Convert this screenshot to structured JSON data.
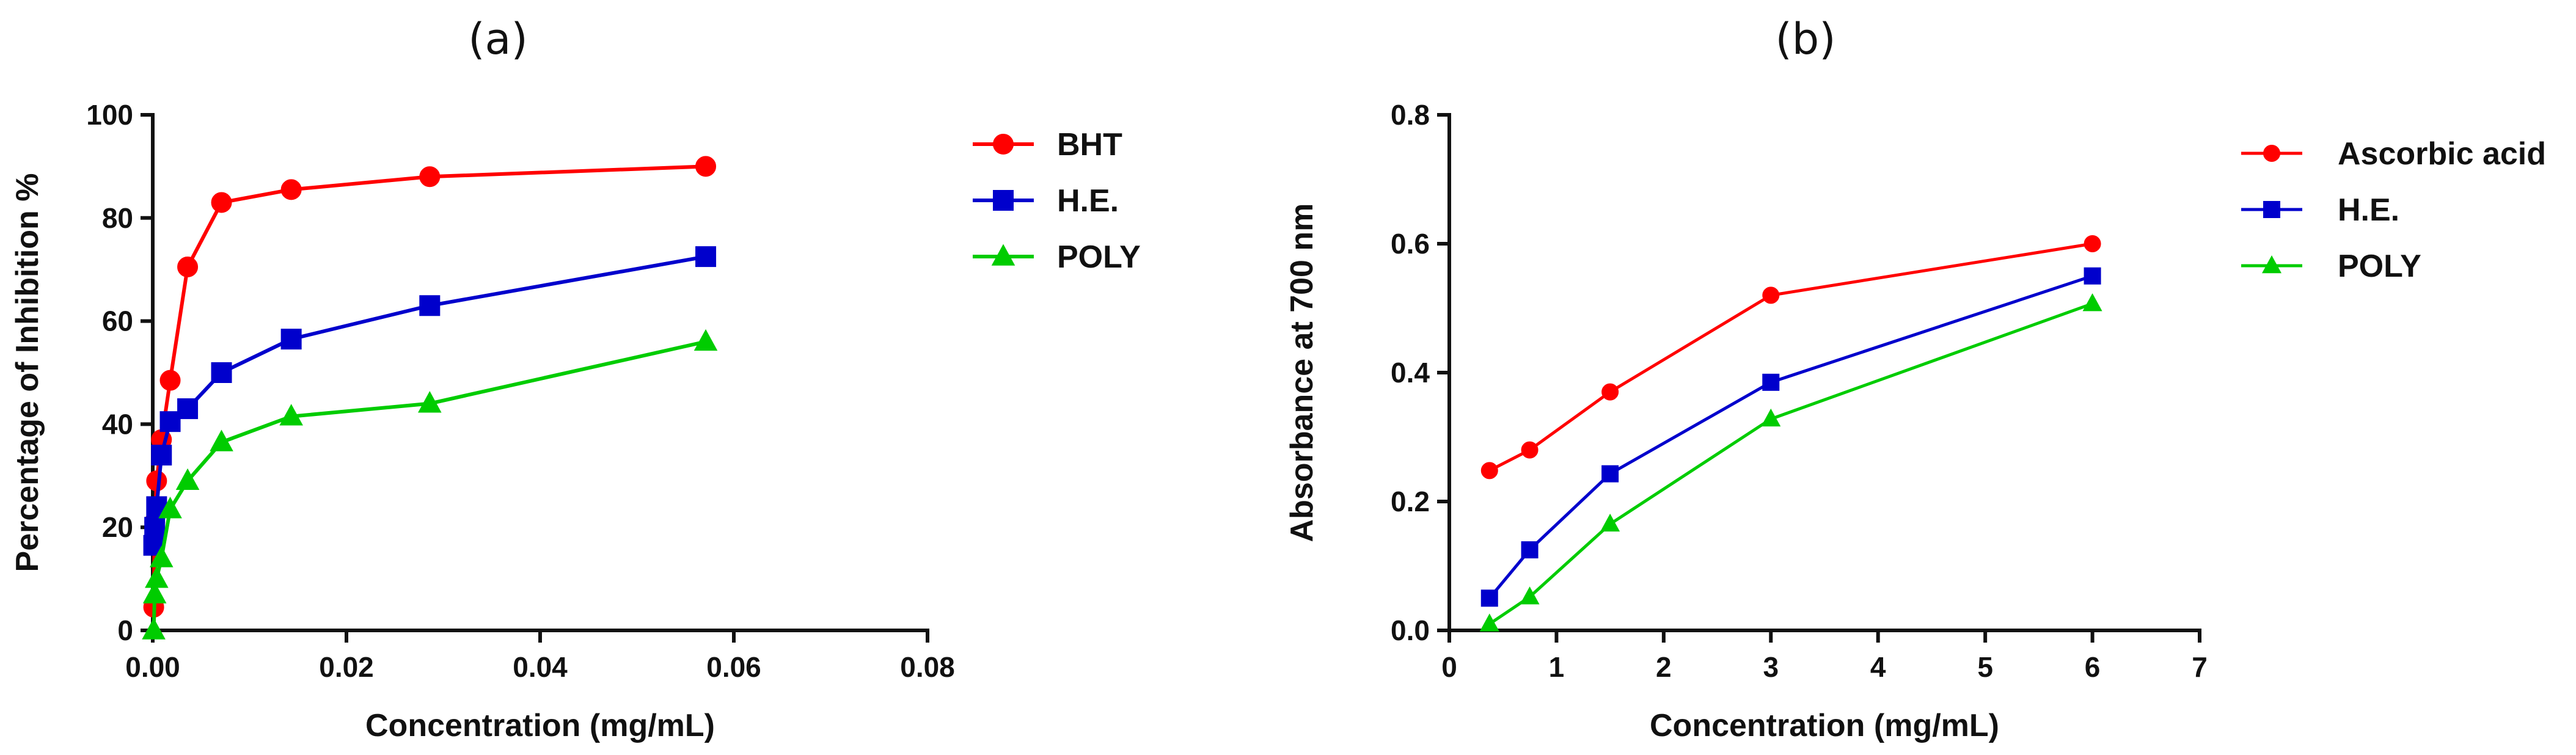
{
  "chart_data": [
    {
      "type": "line",
      "panel_label": "(a)",
      "xlabel": "Concentration (mg/mL)",
      "ylabel": "Percentage of Inhibition %",
      "xlim": [
        0,
        0.08
      ],
      "ylim": [
        0,
        100
      ],
      "xticks": [
        0,
        0.02,
        0.04,
        0.06,
        0.08
      ],
      "xtick_labels": [
        "0.00",
        "0.02",
        "0.04",
        "0.06",
        "0.08"
      ],
      "yticks": [
        0,
        20,
        40,
        60,
        80,
        100
      ],
      "ytick_labels": [
        "0",
        "20",
        "40",
        "60",
        "80",
        "100"
      ],
      "grid": false,
      "legend_position": "right",
      "series": [
        {
          "name": "BHT",
          "color": "#ff0000",
          "marker": "circle",
          "x": [
            0.0001,
            0.0002,
            0.0004,
            0.0009,
            0.0018,
            0.0036,
            0.0071,
            0.0143,
            0.0286,
            0.0571
          ],
          "y": [
            4.5,
            21,
            29,
            37,
            48.5,
            70.5,
            83,
            85.5,
            88,
            90
          ]
        },
        {
          "name": "H.E.",
          "color": "#0000cc",
          "marker": "square",
          "x": [
            0.0001,
            0.0002,
            0.0004,
            0.0009,
            0.0018,
            0.0036,
            0.0071,
            0.0143,
            0.0286,
            0.0571
          ],
          "y": [
            16.5,
            20,
            24,
            34,
            40.5,
            43,
            50,
            56.5,
            63,
            72.5
          ]
        },
        {
          "name": "POLY",
          "color": "#00cc00",
          "marker": "triangle",
          "x": [
            0.0001,
            0.0002,
            0.0004,
            0.0009,
            0.0018,
            0.0036,
            0.0071,
            0.0143,
            0.0286,
            0.0571
          ],
          "y": [
            0,
            7,
            10,
            14,
            23.5,
            29,
            36.5,
            41.5,
            44,
            56
          ]
        }
      ]
    },
    {
      "type": "line",
      "panel_label": "(b)",
      "xlabel": "Concentration (mg/mL)",
      "ylabel": "Absorbance  at  700 nm",
      "xlim": [
        0,
        7
      ],
      "ylim": [
        0,
        0.8
      ],
      "xticks": [
        0,
        1,
        2,
        3,
        4,
        5,
        6,
        7
      ],
      "xtick_labels": [
        "0",
        "1",
        "2",
        "3",
        "4",
        "5",
        "6",
        "7"
      ],
      "yticks": [
        0,
        0.2,
        0.4,
        0.6,
        0.8
      ],
      "ytick_labels": [
        "0.0",
        "0.2",
        "0.4",
        "0.6",
        "0.8"
      ],
      "grid": false,
      "legend_position": "right",
      "series": [
        {
          "name": "Ascorbic acid",
          "color": "#ff0000",
          "marker": "circle",
          "x": [
            0.375,
            0.75,
            1.5,
            3,
            6
          ],
          "y": [
            0.248,
            0.28,
            0.37,
            0.52,
            0.6
          ]
        },
        {
          "name": "H.E.",
          "color": "#0000cc",
          "marker": "square",
          "x": [
            0.375,
            0.75,
            1.5,
            3,
            6
          ],
          "y": [
            0.05,
            0.125,
            0.243,
            0.385,
            0.55
          ]
        },
        {
          "name": "POLY",
          "color": "#00cc00",
          "marker": "triangle",
          "x": [
            0.375,
            0.75,
            1.5,
            3,
            6
          ],
          "y": [
            0.01,
            0.052,
            0.165,
            0.328,
            0.507
          ]
        }
      ]
    }
  ]
}
